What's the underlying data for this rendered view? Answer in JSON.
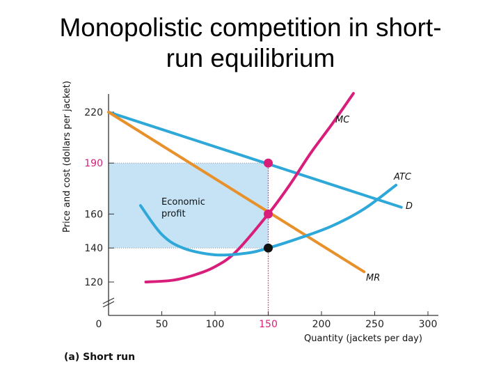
{
  "title": {
    "line1": "Monopolistic competition in short-",
    "line2": "run equilibrium"
  },
  "chart_data": {
    "type": "line",
    "caption": "(a) Short run",
    "xlabel": "Quantity (jackets per day)",
    "ylabel": "Price and cost (dollars per jacket)",
    "xlim": [
      0,
      300
    ],
    "ylim": [
      120,
      220
    ],
    "y_axis_break": true,
    "x_ticks": [
      "0",
      "50",
      "100",
      "150",
      "200",
      "250",
      "300"
    ],
    "y_ticks": [
      "120",
      "140",
      "160",
      "190",
      "220"
    ],
    "highlighted_tick": {
      "x": "150",
      "y": "190"
    },
    "series": [
      {
        "name": "D",
        "color": "#2ea8d8",
        "points": [
          [
            0,
            220
          ],
          [
            275,
            164
          ]
        ]
      },
      {
        "name": "MR",
        "color": "#e8912a",
        "points": [
          [
            0,
            220
          ],
          [
            240,
            126
          ]
        ]
      },
      {
        "name": "MC",
        "color": "#d81e7a",
        "points": [
          [
            35,
            120
          ],
          [
            60,
            121
          ],
          [
            80,
            124
          ],
          [
            100,
            129
          ],
          [
            120,
            138
          ],
          [
            150,
            160
          ],
          [
            170,
            177
          ],
          [
            190,
            196
          ],
          [
            210,
            213
          ],
          [
            230,
            231
          ]
        ]
      },
      {
        "name": "ATC",
        "color": "#2ea8d8",
        "points": [
          [
            30,
            165
          ],
          [
            50,
            148
          ],
          [
            70,
            140
          ],
          [
            100,
            136
          ],
          [
            130,
            137
          ],
          [
            150,
            140
          ],
          [
            180,
            146
          ],
          [
            210,
            153
          ],
          [
            240,
            163
          ],
          [
            270,
            177
          ]
        ]
      }
    ],
    "profit_region": {
      "label_line1": "Economic",
      "label_line2": "profit",
      "x": [
        0,
        150
      ],
      "y": [
        140,
        190
      ],
      "color": "#c5e3f5"
    },
    "points": [
      {
        "x": 150,
        "y": 190,
        "color": "#d81e7a"
      },
      {
        "x": 150,
        "y": 160,
        "color": "#d81e7a"
      },
      {
        "x": 150,
        "y": 140,
        "color": "#111111"
      }
    ],
    "reference_line": {
      "x": 150,
      "y": [
        120,
        190
      ],
      "color": "#d81e7a"
    },
    "legend": "none",
    "grid": false
  }
}
